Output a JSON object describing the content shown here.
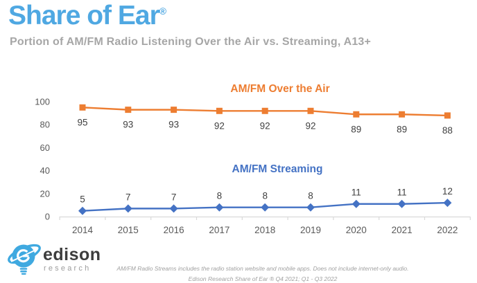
{
  "header": {
    "title": "Share of Ear",
    "trademark": "®",
    "subtitle": "Portion of AM/FM Radio Listening Over the Air vs. Streaming, A13+"
  },
  "chart_data": {
    "type": "line",
    "categories": [
      "2014",
      "2015",
      "2016",
      "2017",
      "2018",
      "2019",
      "2020",
      "2021",
      "2022"
    ],
    "series": [
      {
        "name": "AM/FM Over the Air",
        "color": "#ED7D31",
        "marker": "square",
        "label_position": "below",
        "values": [
          95,
          93,
          93,
          92,
          92,
          92,
          89,
          89,
          88
        ]
      },
      {
        "name": "AM/FM Streaming",
        "color": "#4472C4",
        "marker": "diamond",
        "label_position": "above",
        "values": [
          5,
          7,
          7,
          8,
          8,
          8,
          11,
          11,
          12
        ]
      }
    ],
    "title": "",
    "xlabel": "",
    "ylabel": "",
    "ylim": [
      0,
      100
    ],
    "yticks": [
      0,
      20,
      40,
      60,
      80,
      100
    ],
    "grid": false,
    "legend_position": "inline-labels"
  },
  "footer": {
    "logo": {
      "text_primary": "edison",
      "text_secondary": "research"
    },
    "note1": "AM/FM Radio Streams includes the radio station website and mobile apps. Does not include internet-only audio.",
    "note2": "Edison Research Share of Ear ® Q4 2021; Q1 - Q3 2022"
  },
  "colors": {
    "title_blue": "#4FA8E2",
    "subtitle_gray": "#A6A6A6",
    "over_air_orange": "#ED7D31",
    "streaming_blue": "#4472C4",
    "data_label": "#404040",
    "axis_text": "#595959",
    "axis_line": "#D9D9D9",
    "footnote_gray": "#A0A0A0",
    "logo_blue": "#3FA9E0"
  }
}
